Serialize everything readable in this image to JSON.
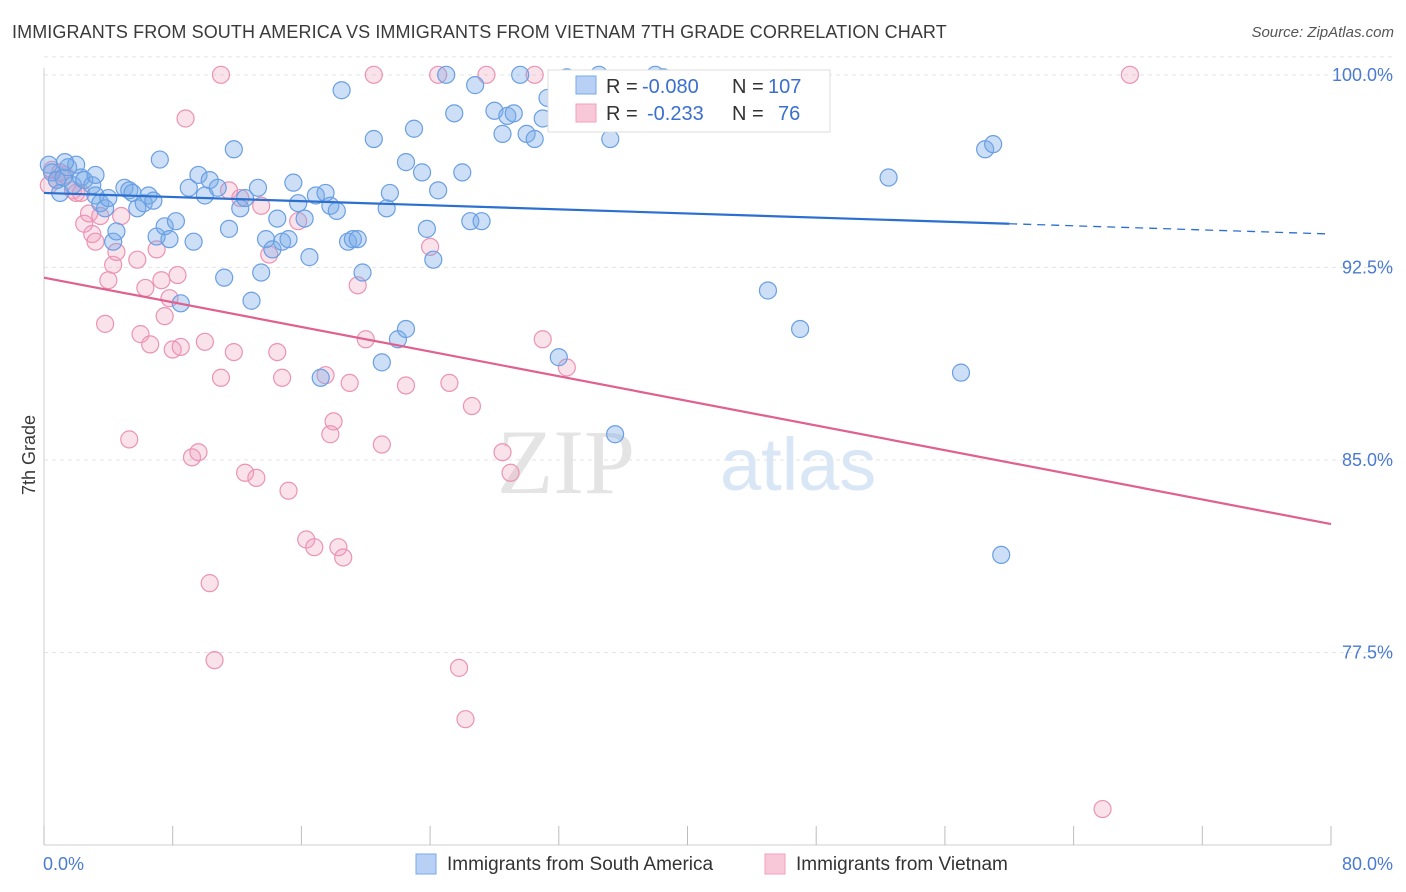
{
  "title": "IMMIGRANTS FROM SOUTH AMERICA VS IMMIGRANTS FROM VIETNAM 7TH GRADE CORRELATION CHART",
  "source": "Source: ZipAtlas.com",
  "watermark": {
    "zip": "ZIP",
    "atlas": "atlas"
  },
  "colors": {
    "south_america": "#7aaae8",
    "south_america_line": "#2b6fcf",
    "vietnam": "#f0a0bc",
    "vietnam_line": "#e0608e",
    "tick_text": "#4a7bd1",
    "grid": "#e3e3e3"
  },
  "legend_box": {
    "rows": [
      {
        "r_label": "R =",
        "r_value": "-0.080",
        "n_label": "N =",
        "n_value": "107"
      },
      {
        "r_label": "R =",
        "r_value": "-0.233",
        "n_label": "N =",
        "n_value": "76"
      }
    ]
  },
  "chart_data": {
    "type": "scatter",
    "title": "IMMIGRANTS FROM SOUTH AMERICA VS IMMIGRANTS FROM VIETNAM 7TH GRADE CORRELATION CHART",
    "xlabel": "",
    "ylabel": "7th Grade",
    "xlim": [
      0,
      80
    ],
    "ylim": [
      70.0,
      100.5
    ],
    "x_tick_labels": [
      "0.0%",
      "80.0%"
    ],
    "y_ticks": [
      77.5,
      85.0,
      92.5,
      100.0
    ],
    "y_tick_labels": [
      "77.5%",
      "85.0%",
      "92.5%",
      "100.0%"
    ],
    "grid": true,
    "legend_position": "bottom-center",
    "series": [
      {
        "name": "Immigrants from South America",
        "R": -0.08,
        "N": 107,
        "trend": {
          "x0": 0,
          "y0": 95.4,
          "x1": 60,
          "y1": 94.2,
          "dash_x1": 80,
          "dash_y1": 93.8
        },
        "points": [
          [
            0.3,
            96.5
          ],
          [
            0.5,
            96.2
          ],
          [
            0.8,
            95.9
          ],
          [
            1.0,
            95.4
          ],
          [
            1.2,
            96.0
          ],
          [
            1.5,
            96.4
          ],
          [
            1.8,
            95.7
          ],
          [
            2.0,
            96.5
          ],
          [
            2.3,
            96.0
          ],
          [
            2.5,
            95.9
          ],
          [
            3.0,
            95.7
          ],
          [
            3.2,
            95.3
          ],
          [
            3.5,
            95.0
          ],
          [
            3.8,
            94.8
          ],
          [
            4.0,
            95.2
          ],
          [
            4.3,
            93.5
          ],
          [
            4.5,
            93.9
          ],
          [
            5.0,
            95.6
          ],
          [
            5.3,
            95.5
          ],
          [
            5.5,
            95.4
          ],
          [
            5.8,
            94.8
          ],
          [
            6.2,
            95.0
          ],
          [
            6.5,
            95.3
          ],
          [
            7.0,
            93.7
          ],
          [
            7.2,
            96.7
          ],
          [
            7.5,
            94.1
          ],
          [
            7.8,
            93.6
          ],
          [
            8.2,
            94.3
          ],
          [
            8.5,
            91.1
          ],
          [
            9.0,
            95.6
          ],
          [
            9.3,
            93.5
          ],
          [
            9.6,
            96.1
          ],
          [
            10.0,
            95.3
          ],
          [
            10.3,
            95.9
          ],
          [
            10.8,
            95.6
          ],
          [
            11.2,
            92.1
          ],
          [
            11.5,
            94.0
          ],
          [
            11.8,
            97.1
          ],
          [
            12.2,
            94.8
          ],
          [
            12.5,
            95.2
          ],
          [
            12.9,
            91.2
          ],
          [
            13.3,
            95.6
          ],
          [
            13.5,
            92.3
          ],
          [
            13.8,
            93.6
          ],
          [
            14.2,
            93.2
          ],
          [
            14.5,
            94.4
          ],
          [
            14.8,
            93.5
          ],
          [
            15.2,
            93.6
          ],
          [
            15.5,
            95.8
          ],
          [
            15.8,
            95.0
          ],
          [
            16.2,
            94.4
          ],
          [
            16.5,
            92.9
          ],
          [
            16.9,
            95.3
          ],
          [
            17.2,
            88.2
          ],
          [
            17.5,
            95.4
          ],
          [
            17.8,
            94.9
          ],
          [
            18.2,
            94.7
          ],
          [
            18.5,
            99.4
          ],
          [
            18.9,
            93.5
          ],
          [
            19.2,
            93.6
          ],
          [
            19.5,
            93.6
          ],
          [
            19.8,
            92.3
          ],
          [
            20.5,
            97.5
          ],
          [
            21.0,
            88.8
          ],
          [
            21.3,
            94.8
          ],
          [
            21.5,
            95.4
          ],
          [
            22.0,
            89.7
          ],
          [
            22.5,
            90.1
          ],
          [
            23.0,
            97.9
          ],
          [
            23.5,
            96.2
          ],
          [
            23.8,
            94.0
          ],
          [
            24.2,
            92.8
          ],
          [
            24.5,
            95.5
          ],
          [
            25.0,
            100.0
          ],
          [
            25.5,
            98.5
          ],
          [
            26.0,
            96.2
          ],
          [
            26.5,
            94.3
          ],
          [
            27.2,
            94.3
          ],
          [
            28.0,
            98.6
          ],
          [
            28.5,
            97.7
          ],
          [
            28.8,
            98.4
          ],
          [
            29.2,
            98.5
          ],
          [
            29.6,
            100.0
          ],
          [
            30.0,
            97.7
          ],
          [
            30.5,
            97.5
          ],
          [
            31.0,
            98.3
          ],
          [
            31.3,
            99.1
          ],
          [
            32.0,
            89.0
          ],
          [
            32.5,
            99.9
          ],
          [
            34.5,
            100.0
          ],
          [
            35.0,
            98.1
          ],
          [
            35.2,
            97.5
          ],
          [
            35.5,
            86.0
          ],
          [
            38.5,
            99.9
          ],
          [
            38.0,
            100.0
          ],
          [
            45.0,
            91.6
          ],
          [
            47.0,
            90.1
          ],
          [
            52.5,
            96.0
          ],
          [
            57.0,
            88.4
          ],
          [
            58.5,
            97.1
          ],
          [
            59.0,
            97.3
          ],
          [
            59.5,
            81.3
          ],
          [
            26.8,
            99.6
          ],
          [
            3.2,
            96.1
          ],
          [
            1.3,
            96.6
          ],
          [
            6.8,
            95.1
          ],
          [
            22.5,
            96.6
          ]
        ]
      },
      {
        "name": "Immigrants from Vietnam",
        "R": -0.233,
        "N": 76,
        "trend": {
          "x0": 0,
          "y0": 92.1,
          "x1": 80,
          "y1": 82.5
        },
        "points": [
          [
            0.3,
            95.7
          ],
          [
            0.5,
            96.3
          ],
          [
            0.8,
            95.9
          ],
          [
            1.0,
            96.2
          ],
          [
            1.3,
            96.1
          ],
          [
            1.8,
            95.5
          ],
          [
            2.0,
            95.4
          ],
          [
            2.3,
            95.4
          ],
          [
            2.5,
            94.2
          ],
          [
            2.8,
            94.6
          ],
          [
            3.0,
            93.8
          ],
          [
            3.2,
            93.5
          ],
          [
            3.5,
            94.5
          ],
          [
            3.8,
            90.3
          ],
          [
            4.0,
            92.0
          ],
          [
            4.3,
            92.6
          ],
          [
            4.5,
            93.1
          ],
          [
            4.8,
            94.5
          ],
          [
            5.3,
            85.8
          ],
          [
            5.8,
            92.8
          ],
          [
            6.0,
            89.9
          ],
          [
            6.3,
            91.7
          ],
          [
            6.6,
            89.5
          ],
          [
            7.0,
            93.2
          ],
          [
            7.3,
            92.0
          ],
          [
            7.5,
            90.6
          ],
          [
            7.8,
            91.3
          ],
          [
            8.0,
            89.3
          ],
          [
            8.3,
            92.2
          ],
          [
            8.5,
            89.4
          ],
          [
            8.8,
            98.3
          ],
          [
            9.2,
            85.1
          ],
          [
            9.6,
            85.3
          ],
          [
            10.0,
            89.6
          ],
          [
            10.3,
            80.2
          ],
          [
            10.6,
            77.2
          ],
          [
            11.0,
            88.2
          ],
          [
            11.5,
            95.5
          ],
          [
            11.8,
            89.2
          ],
          [
            12.5,
            84.5
          ],
          [
            13.2,
            84.3
          ],
          [
            13.5,
            94.9
          ],
          [
            14.0,
            93.0
          ],
          [
            14.5,
            89.2
          ],
          [
            14.8,
            88.2
          ],
          [
            15.2,
            83.8
          ],
          [
            15.8,
            94.3
          ],
          [
            16.3,
            81.9
          ],
          [
            16.8,
            81.6
          ],
          [
            17.5,
            88.3
          ],
          [
            18.0,
            86.5
          ],
          [
            18.3,
            81.6
          ],
          [
            18.6,
            81.2
          ],
          [
            19.0,
            88.0
          ],
          [
            19.5,
            91.8
          ],
          [
            20.0,
            89.7
          ],
          [
            20.5,
            100.0
          ],
          [
            21.0,
            85.6
          ],
          [
            22.5,
            87.9
          ],
          [
            24.0,
            93.3
          ],
          [
            24.5,
            100.0
          ],
          [
            25.2,
            88.0
          ],
          [
            25.8,
            76.9
          ],
          [
            26.2,
            74.9
          ],
          [
            26.6,
            87.1
          ],
          [
            27.5,
            100.0
          ],
          [
            28.5,
            85.3
          ],
          [
            29.0,
            84.5
          ],
          [
            30.5,
            100.0
          ],
          [
            31.0,
            89.7
          ],
          [
            32.5,
            88.6
          ],
          [
            11.0,
            100.0
          ],
          [
            67.5,
            100.0
          ],
          [
            65.8,
            71.4
          ],
          [
            17.8,
            86.0
          ],
          [
            12.2,
            95.2
          ]
        ]
      }
    ]
  }
}
